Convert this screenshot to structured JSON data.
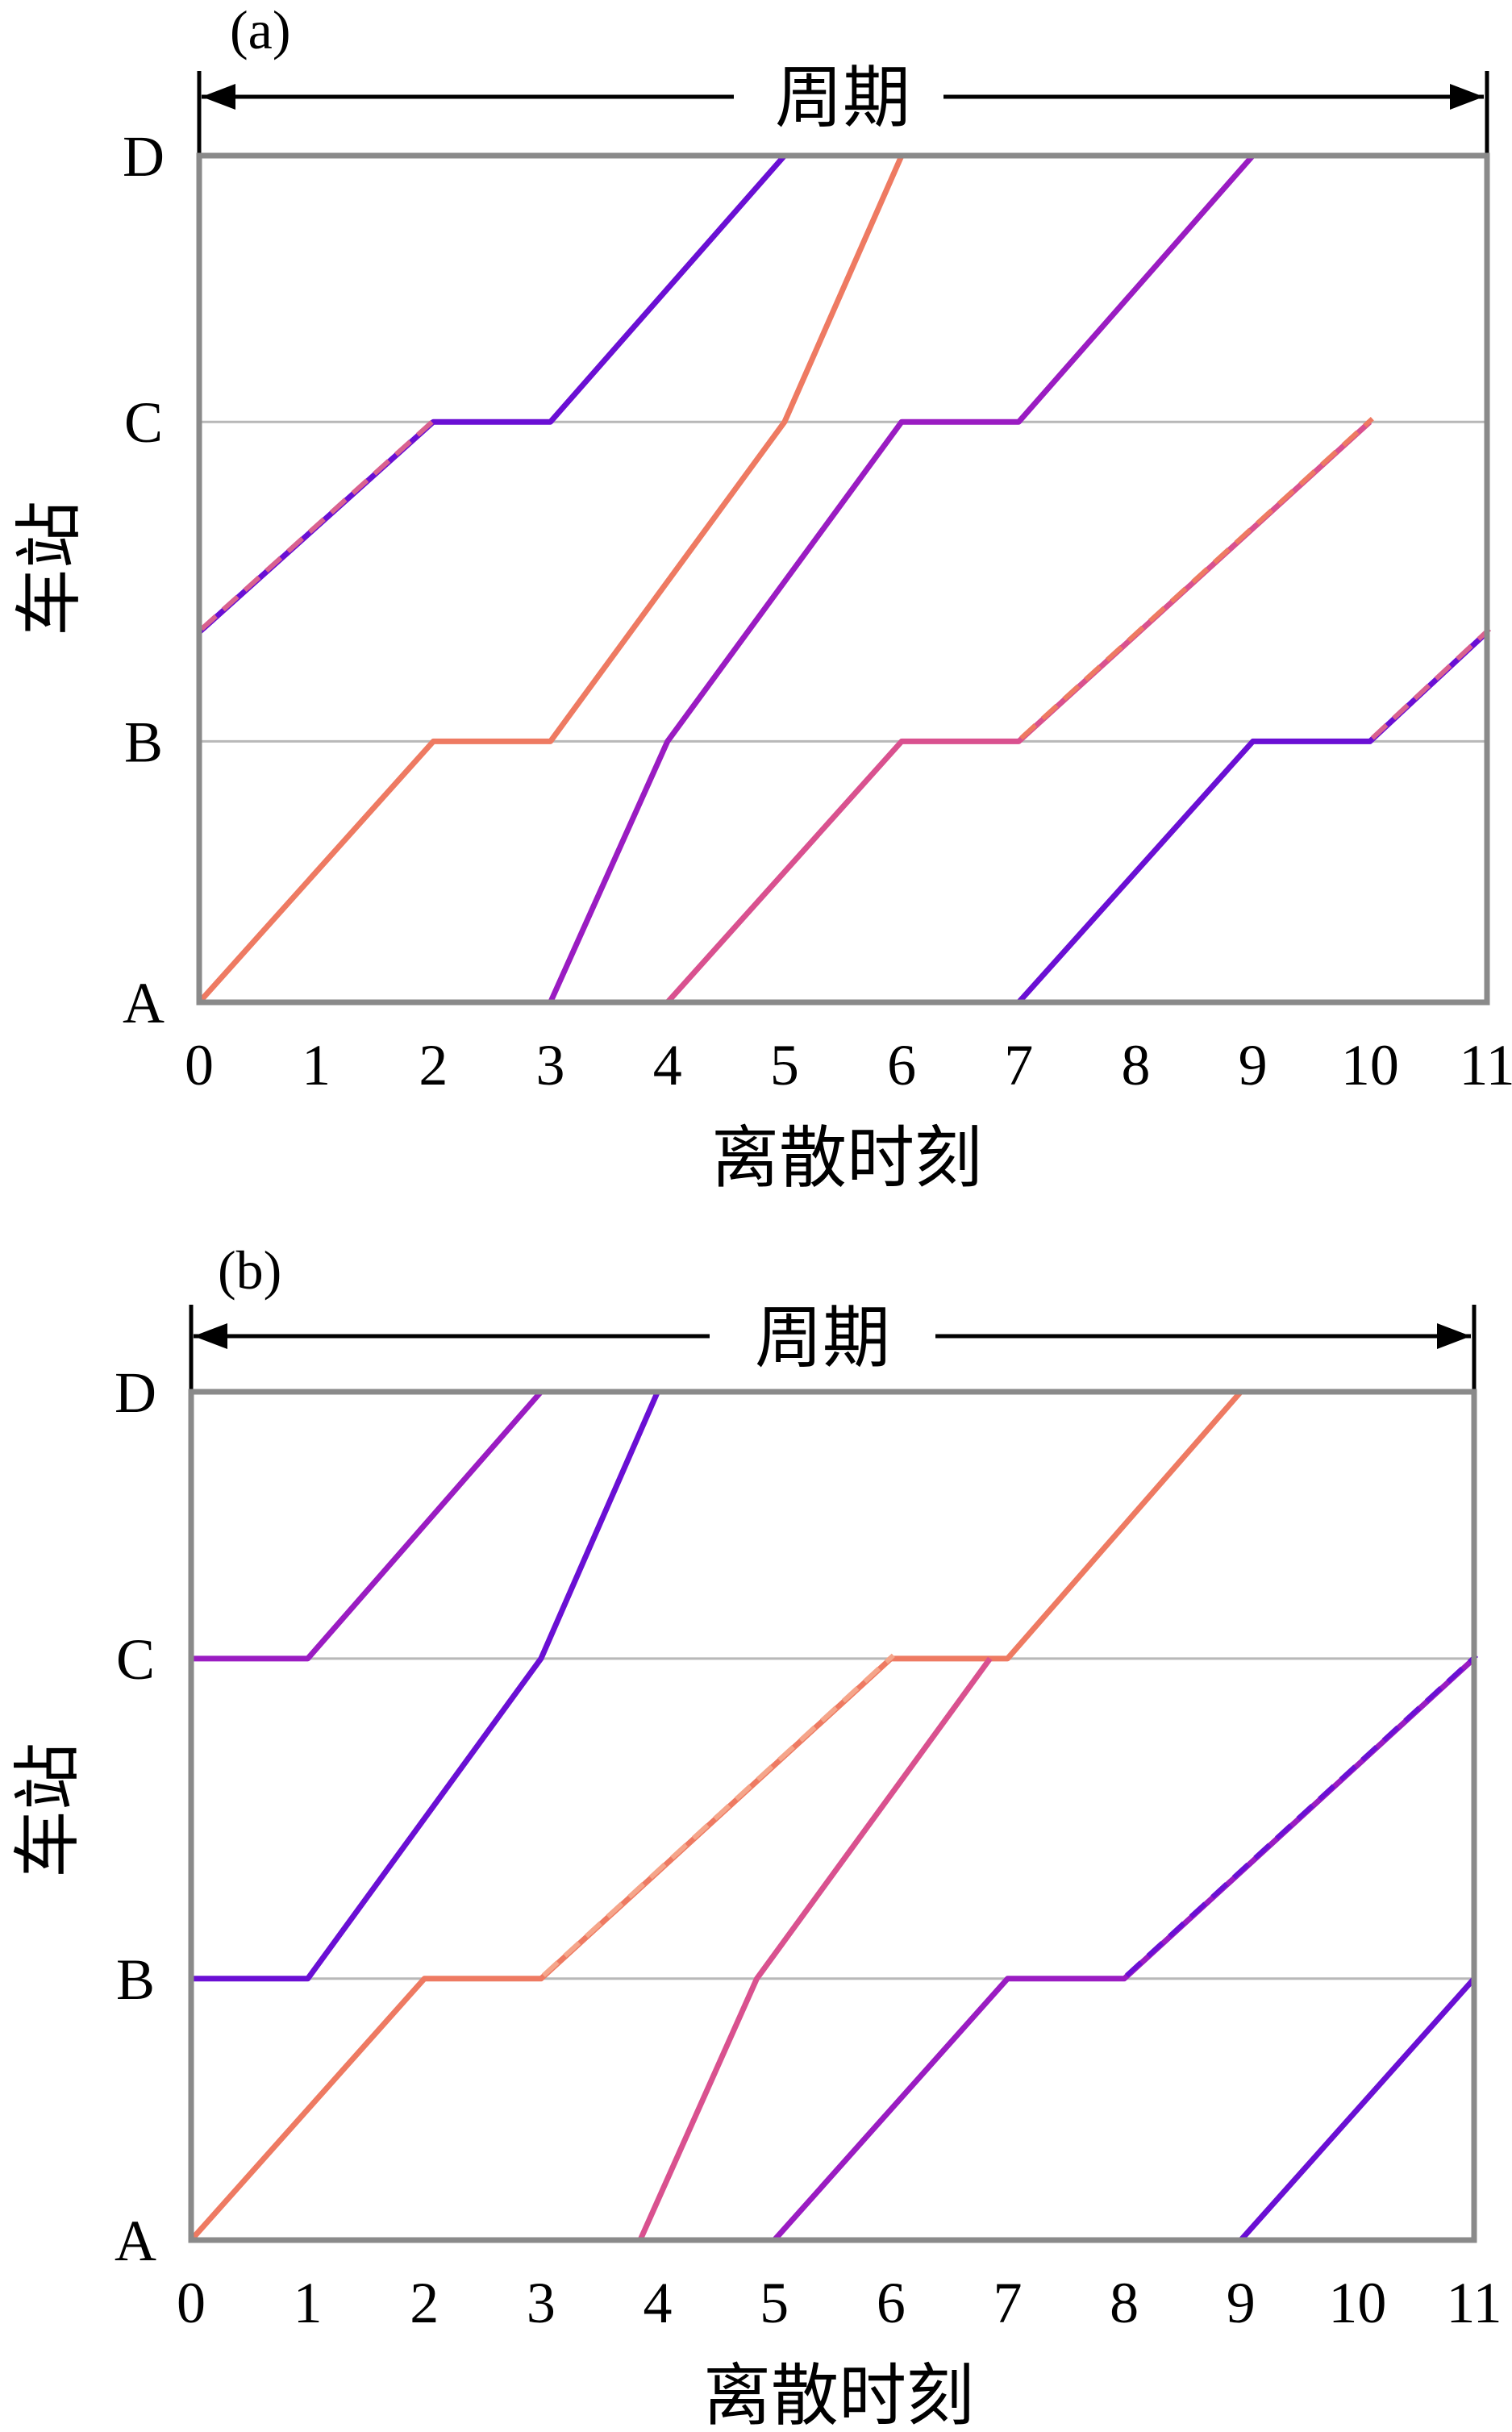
{
  "chart_data": [
    {
      "type": "line",
      "panel_label": "(a)",
      "period_label": "周期",
      "xlabel": "离散时刻",
      "ylabel": "车站",
      "x_ticks": [
        0,
        1,
        2,
        3,
        4,
        5,
        6,
        7,
        8,
        9,
        10,
        11
      ],
      "xlim": [
        0,
        11
      ],
      "stations": [
        "A",
        "B",
        "C",
        "D"
      ],
      "station_positions": [
        0,
        0.98,
        2.18,
        3.18
      ],
      "grid": "horizontal lines at stations B and C",
      "series": [
        {
          "color": "#6a0fd4",
          "dashed": false,
          "points": [
            [
              0,
              1.39
            ],
            [
              2,
              2.18
            ],
            [
              3,
              2.18
            ],
            [
              5,
              3.18
            ]
          ]
        },
        {
          "color": "#d9618f",
          "dashed": true,
          "points": [
            [
              0,
              1.39
            ],
            [
              2,
              2.18
            ]
          ]
        },
        {
          "color": "#ee7a62",
          "dashed": false,
          "points": [
            [
              0,
              0
            ],
            [
              2,
              0.98
            ],
            [
              3,
              0.98
            ],
            [
              5,
              2.18
            ],
            [
              6,
              3.18
            ]
          ]
        },
        {
          "color": "#9a1cc2",
          "dashed": false,
          "points": [
            [
              3,
              0
            ],
            [
              4,
              0.98
            ],
            [
              6,
              2.18
            ],
            [
              7,
              2.18
            ],
            [
              9,
              3.18
            ]
          ]
        },
        {
          "color": "#d9518f",
          "dashed": false,
          "points": [
            [
              4,
              0
            ],
            [
              6,
              0.98
            ],
            [
              7,
              0.98
            ],
            [
              10,
              2.18
            ]
          ]
        },
        {
          "color": "#ee7a62",
          "dashed": true,
          "points": [
            [
              7,
              0.98
            ],
            [
              10,
              2.18
            ]
          ]
        },
        {
          "color": "#6a0fd4",
          "dashed": false,
          "points": [
            [
              7,
              0
            ],
            [
              9,
              0.98
            ],
            [
              10,
              0.98
            ],
            [
              11,
              1.39
            ]
          ]
        },
        {
          "color": "#d9618f",
          "dashed": true,
          "points": [
            [
              10,
              0.98
            ],
            [
              11,
              1.39
            ]
          ]
        }
      ]
    },
    {
      "type": "line",
      "panel_label": "(b)",
      "period_label": "周期",
      "xlabel": "离散时刻",
      "ylabel": "车站",
      "x_ticks": [
        0,
        1,
        2,
        3,
        4,
        5,
        6,
        7,
        8,
        9,
        10,
        11
      ],
      "xlim": [
        0,
        11
      ],
      "stations": [
        "A",
        "B",
        "C",
        "D"
      ],
      "station_positions": [
        0,
        0.98,
        2.18,
        3.18
      ],
      "grid": "horizontal lines at stations B and C",
      "series": [
        {
          "color": "#9a1cc2",
          "dashed": false,
          "points": [
            [
              0,
              2.18
            ],
            [
              1,
              2.18
            ],
            [
              3,
              3.18
            ]
          ]
        },
        {
          "color": "#6a0fd4",
          "dashed": false,
          "points": [
            [
              0,
              0.98
            ],
            [
              1,
              0.98
            ],
            [
              3,
              2.18
            ],
            [
              4,
              3.18
            ]
          ]
        },
        {
          "color": "#ee7a62",
          "dashed": false,
          "points": [
            [
              0,
              0
            ],
            [
              2,
              0.98
            ],
            [
              3,
              0.98
            ],
            [
              6,
              2.18
            ],
            [
              7,
              2.18
            ],
            [
              9,
              3.18
            ]
          ]
        },
        {
          "color": "#f5a58a",
          "dashed": true,
          "points": [
            [
              3,
              0.98
            ],
            [
              6,
              2.18
            ]
          ]
        },
        {
          "color": "#d9518f",
          "dashed": false,
          "points": [
            [
              3.85,
              0
            ],
            [
              4.85,
              0.98
            ],
            [
              6.85,
              2.18
            ]
          ]
        },
        {
          "color": "#9a1cc2",
          "dashed": false,
          "points": [
            [
              5,
              0
            ],
            [
              7,
              0.98
            ],
            [
              8,
              0.98
            ],
            [
              11,
              2.18
            ]
          ]
        },
        {
          "color": "#6a0fd4",
          "dashed": true,
          "points": [
            [
              8,
              0.98
            ],
            [
              11,
              2.18
            ]
          ]
        },
        {
          "color": "#6a0fd4",
          "dashed": false,
          "points": [
            [
              9,
              0
            ],
            [
              11,
              0.98
            ]
          ]
        }
      ]
    }
  ]
}
